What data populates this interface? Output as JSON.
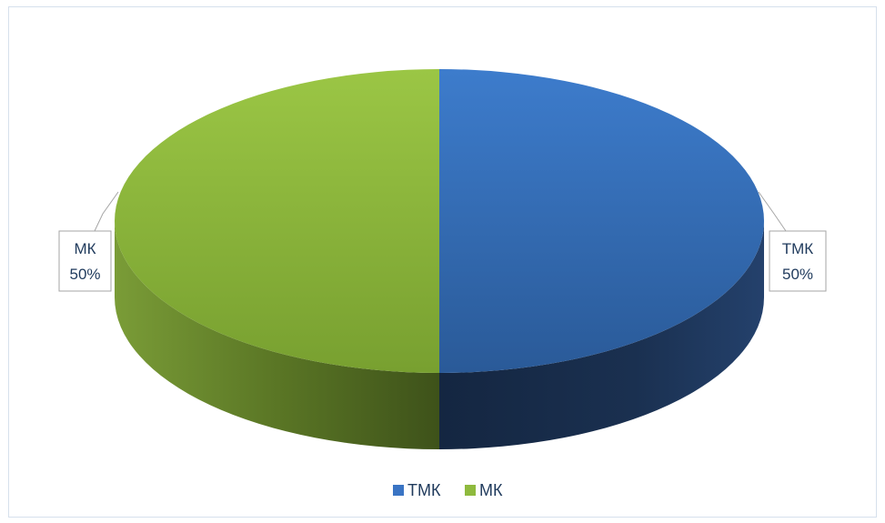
{
  "chart_data": {
    "type": "pie",
    "style": "3d",
    "categories": [
      "ТМК",
      "МК"
    ],
    "values": [
      50,
      50
    ],
    "data_labels": [
      {
        "category": "ТМК",
        "percent": "50%"
      },
      {
        "category": "МК",
        "percent": "50%"
      }
    ],
    "legend": {
      "position": "bottom",
      "items": [
        {
          "name": "ТМК",
          "color": "#3a74c4"
        },
        {
          "name": "МК",
          "color": "#8fba3e"
        }
      ]
    },
    "colors": {
      "ТМК": "#3a74c4",
      "МК": "#8fba3e"
    }
  }
}
